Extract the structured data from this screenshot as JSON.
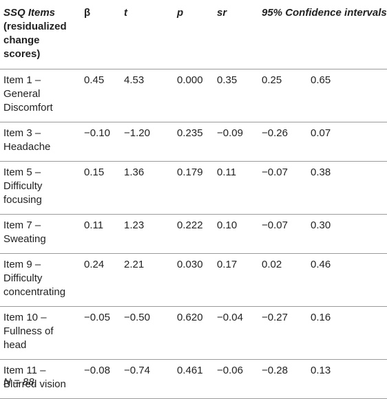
{
  "table": {
    "headers": {
      "item_lines": [
        "SSQ Items",
        "(residualized",
        "change",
        "scores)"
      ],
      "beta": "β",
      "t": "t",
      "p": "p",
      "sr": "sr",
      "ci": "95% Confidence intervals"
    },
    "rows": [
      {
        "item_lines": [
          "Item 1 –",
          "General",
          "Discomfort"
        ],
        "beta": "0.45",
        "t": "4.53",
        "p": "0.000",
        "sr": "0.35",
        "ci_low": "0.25",
        "ci_high": "0.65"
      },
      {
        "item_lines": [
          "Item 3 –",
          "Headache"
        ],
        "beta": "−0.10",
        "t": "−1.20",
        "p": "0.235",
        "sr": "−0.09",
        "ci_low": "−0.26",
        "ci_high": "0.07"
      },
      {
        "item_lines": [
          "Item 5 –",
          "Difficulty",
          "focusing"
        ],
        "beta": "0.15",
        "t": "1.36",
        "p": "0.179",
        "sr": "0.11",
        "ci_low": "−0.07",
        "ci_high": "0.38"
      },
      {
        "item_lines": [
          "Item 7 –",
          "Sweating"
        ],
        "beta": "0.11",
        "t": "1.23",
        "p": "0.222",
        "sr": "0.10",
        "ci_low": "−0.07",
        "ci_high": "0.30"
      },
      {
        "item_lines": [
          "Item 9 –",
          "Difficulty",
          "concentrating"
        ],
        "beta": "0.24",
        "t": "2.21",
        "p": "0.030",
        "sr": "0.17",
        "ci_low": "0.02",
        "ci_high": "0.46"
      },
      {
        "item_lines": [
          "Item 10 –",
          "Fullness of",
          "head"
        ],
        "beta": "−0.05",
        "t": "−0.50",
        "p": "0.620",
        "sr": "−0.04",
        "ci_low": "−0.27",
        "ci_high": "0.16"
      },
      {
        "item_lines": [
          "Item 11 –",
          "Blurred vision"
        ],
        "beta": "−0.08",
        "t": "−0.74",
        "p": "0.461",
        "sr": "−0.06",
        "ci_low": "−0.28",
        "ci_high": "0.13"
      }
    ]
  },
  "note": "N = 88."
}
